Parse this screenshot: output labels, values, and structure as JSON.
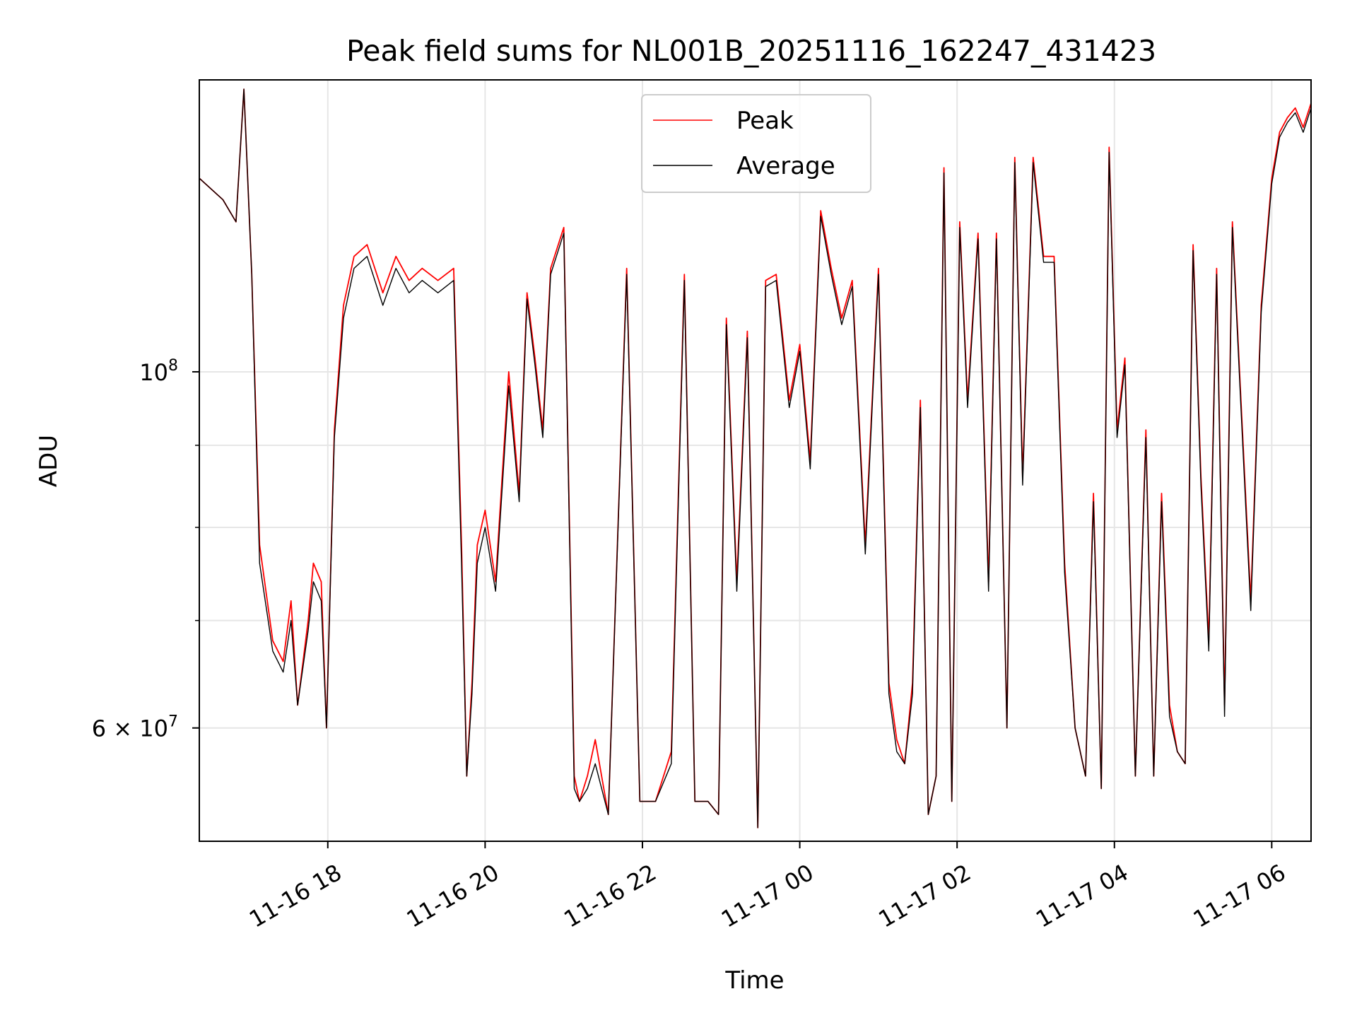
{
  "chart_data": {
    "type": "line",
    "title": "Peak field sums for NL001B_20251116_162247_431423",
    "xlabel": "Time",
    "ylabel": "ADU",
    "y_scale": "log",
    "ylim": [
      51000000,
      152000000
    ],
    "xlim": [
      "11-16 16:22",
      "11-17 06:30"
    ],
    "x_ticks": [
      {
        "value": "11-16 18:00",
        "label": "11-16 18"
      },
      {
        "value": "11-16 20:00",
        "label": "11-16 20"
      },
      {
        "value": "11-16 22:00",
        "label": "11-16 22"
      },
      {
        "value": "11-17 00:00",
        "label": "11-17 00"
      },
      {
        "value": "11-17 02:00",
        "label": "11-17 02"
      },
      {
        "value": "11-17 04:00",
        "label": "11-17 04"
      },
      {
        "value": "11-17 06:00",
        "label": "11-17 06"
      }
    ],
    "y_ticks": [
      {
        "value": 100000000,
        "base": "10",
        "exp": "8"
      },
      {
        "value": 60000000,
        "base": "6 × 10",
        "exp": "7"
      }
    ],
    "grid": true,
    "legend_position": "top-center",
    "series": [
      {
        "name": "Peak",
        "color": "#ff0000",
        "x": [
          "11-16 16:22",
          "11-16 16:40",
          "11-16 16:50",
          "11-16 16:56",
          "11-16 17:02",
          "11-16 17:08",
          "11-16 17:18",
          "11-16 17:26",
          "11-16 17:32",
          "11-16 17:37",
          "11-16 17:45",
          "11-16 17:49",
          "11-16 17:55",
          "11-16 17:59",
          "11-16 18:05",
          "11-16 18:12",
          "11-16 18:20",
          "11-16 18:30",
          "11-16 18:42",
          "11-16 18:52",
          "11-16 19:02",
          "11-16 19:12",
          "11-16 19:24",
          "11-16 19:36",
          "11-16 19:42",
          "11-16 19:46",
          "11-16 19:50",
          "11-16 19:54",
          "11-16 20:00",
          "11-16 20:08",
          "11-16 20:18",
          "11-16 20:26",
          "11-16 20:32",
          "11-16 20:38",
          "11-16 20:44",
          "11-16 20:50",
          "11-16 21:00",
          "11-16 21:08",
          "11-16 21:12",
          "11-16 21:18",
          "11-16 21:24",
          "11-16 21:34",
          "11-16 21:48",
          "11-16 21:58",
          "11-16 22:10",
          "11-16 22:22",
          "11-16 22:32",
          "11-16 22:40",
          "11-16 22:50",
          "11-16 22:58",
          "11-16 23:04",
          "11-16 23:12",
          "11-16 23:20",
          "11-16 23:28",
          "11-16 23:34",
          "11-16 23:42",
          "11-16 23:52",
          "11-17 00:00",
          "11-17 00:08",
          "11-17 00:16",
          "11-17 00:24",
          "11-17 00:32",
          "11-17 00:40",
          "11-17 00:50",
          "11-17 01:00",
          "11-17 01:08",
          "11-17 01:14",
          "11-17 01:20",
          "11-17 01:26",
          "11-17 01:32",
          "11-17 01:38",
          "11-17 01:44",
          "11-17 01:50",
          "11-17 01:56",
          "11-17 02:02",
          "11-17 02:08",
          "11-17 02:16",
          "11-17 02:24",
          "11-17 02:30",
          "11-17 02:38",
          "11-17 02:44",
          "11-17 02:50",
          "11-17 02:58",
          "11-17 03:06",
          "11-17 03:14",
          "11-17 03:22",
          "11-17 03:30",
          "11-17 03:38",
          "11-17 03:44",
          "11-17 03:50",
          "11-17 03:56",
          "11-17 04:02",
          "11-17 04:08",
          "11-17 04:16",
          "11-17 04:24",
          "11-17 04:30",
          "11-17 04:36",
          "11-17 04:42",
          "11-17 04:48",
          "11-17 04:54",
          "11-17 05:00",
          "11-17 05:06",
          "11-17 05:12",
          "11-17 05:18",
          "11-17 05:24",
          "11-17 05:30",
          "11-17 05:36",
          "11-17 05:44",
          "11-17 05:52",
          "11-17 06:00",
          "11-17 06:06",
          "11-17 06:12",
          "11-17 06:18",
          "11-17 06:24",
          "11-17 06:30"
        ],
        "values": [
          132000000,
          128000000,
          124000000,
          150000000,
          115000000,
          78000000,
          68000000,
          66000000,
          72000000,
          62000000,
          70000000,
          76000000,
          74000000,
          60000000,
          92000000,
          110000000,
          118000000,
          120000000,
          112000000,
          118000000,
          114000000,
          116000000,
          114000000,
          116000000,
          78000000,
          56000000,
          64000000,
          78000000,
          82000000,
          74000000,
          100000000,
          84000000,
          112000000,
          102000000,
          92000000,
          116000000,
          123000000,
          56000000,
          54000000,
          56000000,
          59000000,
          53000000,
          116000000,
          54000000,
          54000000,
          58000000,
          115000000,
          54000000,
          54000000,
          53000000,
          108000000,
          74000000,
          106000000,
          52000000,
          114000000,
          115000000,
          96000000,
          104000000,
          88000000,
          126000000,
          116000000,
          108000000,
          114000000,
          78000000,
          116000000,
          64000000,
          59000000,
          57000000,
          64000000,
          96000000,
          53000000,
          56000000,
          134000000,
          54000000,
          124000000,
          96000000,
          122000000,
          74000000,
          122000000,
          60000000,
          136000000,
          86000000,
          136000000,
          118000000,
          118000000,
          76000000,
          60000000,
          56000000,
          84000000,
          55000000,
          138000000,
          92000000,
          102000000,
          56000000,
          92000000,
          56000000,
          84000000,
          62000000,
          58000000,
          57000000,
          120000000,
          86000000,
          68000000,
          116000000,
          62000000,
          124000000,
          98000000,
          72000000,
          110000000,
          132000000,
          141000000,
          144000000,
          146000000,
          142000000,
          147000000
        ]
      },
      {
        "name": "Average",
        "color": "#000000",
        "x": [
          "11-16 16:22",
          "11-16 16:40",
          "11-16 16:50",
          "11-16 16:56",
          "11-16 17:02",
          "11-16 17:08",
          "11-16 17:18",
          "11-16 17:26",
          "11-16 17:32",
          "11-16 17:37",
          "11-16 17:45",
          "11-16 17:49",
          "11-16 17:55",
          "11-16 17:59",
          "11-16 18:05",
          "11-16 18:12",
          "11-16 18:20",
          "11-16 18:30",
          "11-16 18:42",
          "11-16 18:52",
          "11-16 19:02",
          "11-16 19:12",
          "11-16 19:24",
          "11-16 19:36",
          "11-16 19:42",
          "11-16 19:46",
          "11-16 19:50",
          "11-16 19:54",
          "11-16 20:00",
          "11-16 20:08",
          "11-16 20:18",
          "11-16 20:26",
          "11-16 20:32",
          "11-16 20:38",
          "11-16 20:44",
          "11-16 20:50",
          "11-16 21:00",
          "11-16 21:08",
          "11-16 21:12",
          "11-16 21:18",
          "11-16 21:24",
          "11-16 21:34",
          "11-16 21:48",
          "11-16 21:58",
          "11-16 22:10",
          "11-16 22:22",
          "11-16 22:32",
          "11-16 22:40",
          "11-16 22:50",
          "11-16 22:58",
          "11-16 23:04",
          "11-16 23:12",
          "11-16 23:20",
          "11-16 23:28",
          "11-16 23:34",
          "11-16 23:42",
          "11-16 23:52",
          "11-17 00:00",
          "11-17 00:08",
          "11-17 00:16",
          "11-17 00:24",
          "11-17 00:32",
          "11-17 00:40",
          "11-17 00:50",
          "11-17 01:00",
          "11-17 01:08",
          "11-17 01:14",
          "11-17 01:20",
          "11-17 01:26",
          "11-17 01:32",
          "11-17 01:38",
          "11-17 01:44",
          "11-17 01:50",
          "11-17 01:56",
          "11-17 02:02",
          "11-17 02:08",
          "11-17 02:16",
          "11-17 02:24",
          "11-17 02:30",
          "11-17 02:38",
          "11-17 02:44",
          "11-17 02:50",
          "11-17 02:58",
          "11-17 03:06",
          "11-17 03:14",
          "11-17 03:22",
          "11-17 03:30",
          "11-17 03:38",
          "11-17 03:44",
          "11-17 03:50",
          "11-17 03:56",
          "11-17 04:02",
          "11-17 04:08",
          "11-17 04:16",
          "11-17 04:24",
          "11-17 04:30",
          "11-17 04:36",
          "11-17 04:42",
          "11-17 04:48",
          "11-17 04:54",
          "11-17 05:00",
          "11-17 05:06",
          "11-17 05:12",
          "11-17 05:18",
          "11-17 05:24",
          "11-17 05:30",
          "11-17 05:36",
          "11-17 05:44",
          "11-17 05:52",
          "11-17 06:00",
          "11-17 06:06",
          "11-17 06:12",
          "11-17 06:18",
          "11-17 06:24",
          "11-17 06:30"
        ],
        "values": [
          132000000,
          128000000,
          124000000,
          150000000,
          115000000,
          76000000,
          67000000,
          65000000,
          70000000,
          62000000,
          69000000,
          74000000,
          72000000,
          60000000,
          91000000,
          108000000,
          116000000,
          118000000,
          110000000,
          116000000,
          112000000,
          114000000,
          112000000,
          114000000,
          76000000,
          56000000,
          63000000,
          76000000,
          80000000,
          73000000,
          98000000,
          83000000,
          111000000,
          101000000,
          91000000,
          115000000,
          122000000,
          55000000,
          54000000,
          55000000,
          57000000,
          53000000,
          115000000,
          54000000,
          54000000,
          57000000,
          114000000,
          54000000,
          54000000,
          53000000,
          107000000,
          73000000,
          105000000,
          52000000,
          113000000,
          114000000,
          95000000,
          103000000,
          87000000,
          125000000,
          115000000,
          107000000,
          113000000,
          77000000,
          115000000,
          63000000,
          58000000,
          57000000,
          63000000,
          95000000,
          53000000,
          56000000,
          133000000,
          54000000,
          123000000,
          95000000,
          121000000,
          73000000,
          121000000,
          60000000,
          135000000,
          85000000,
          135000000,
          117000000,
          117000000,
          75000000,
          60000000,
          56000000,
          83000000,
          55000000,
          137000000,
          91000000,
          101000000,
          56000000,
          91000000,
          56000000,
          83000000,
          61000000,
          58000000,
          57000000,
          119000000,
          85000000,
          67000000,
          115000000,
          61000000,
          123000000,
          97000000,
          71000000,
          109000000,
          131000000,
          140000000,
          143000000,
          145000000,
          141000000,
          146000000
        ]
      }
    ]
  }
}
